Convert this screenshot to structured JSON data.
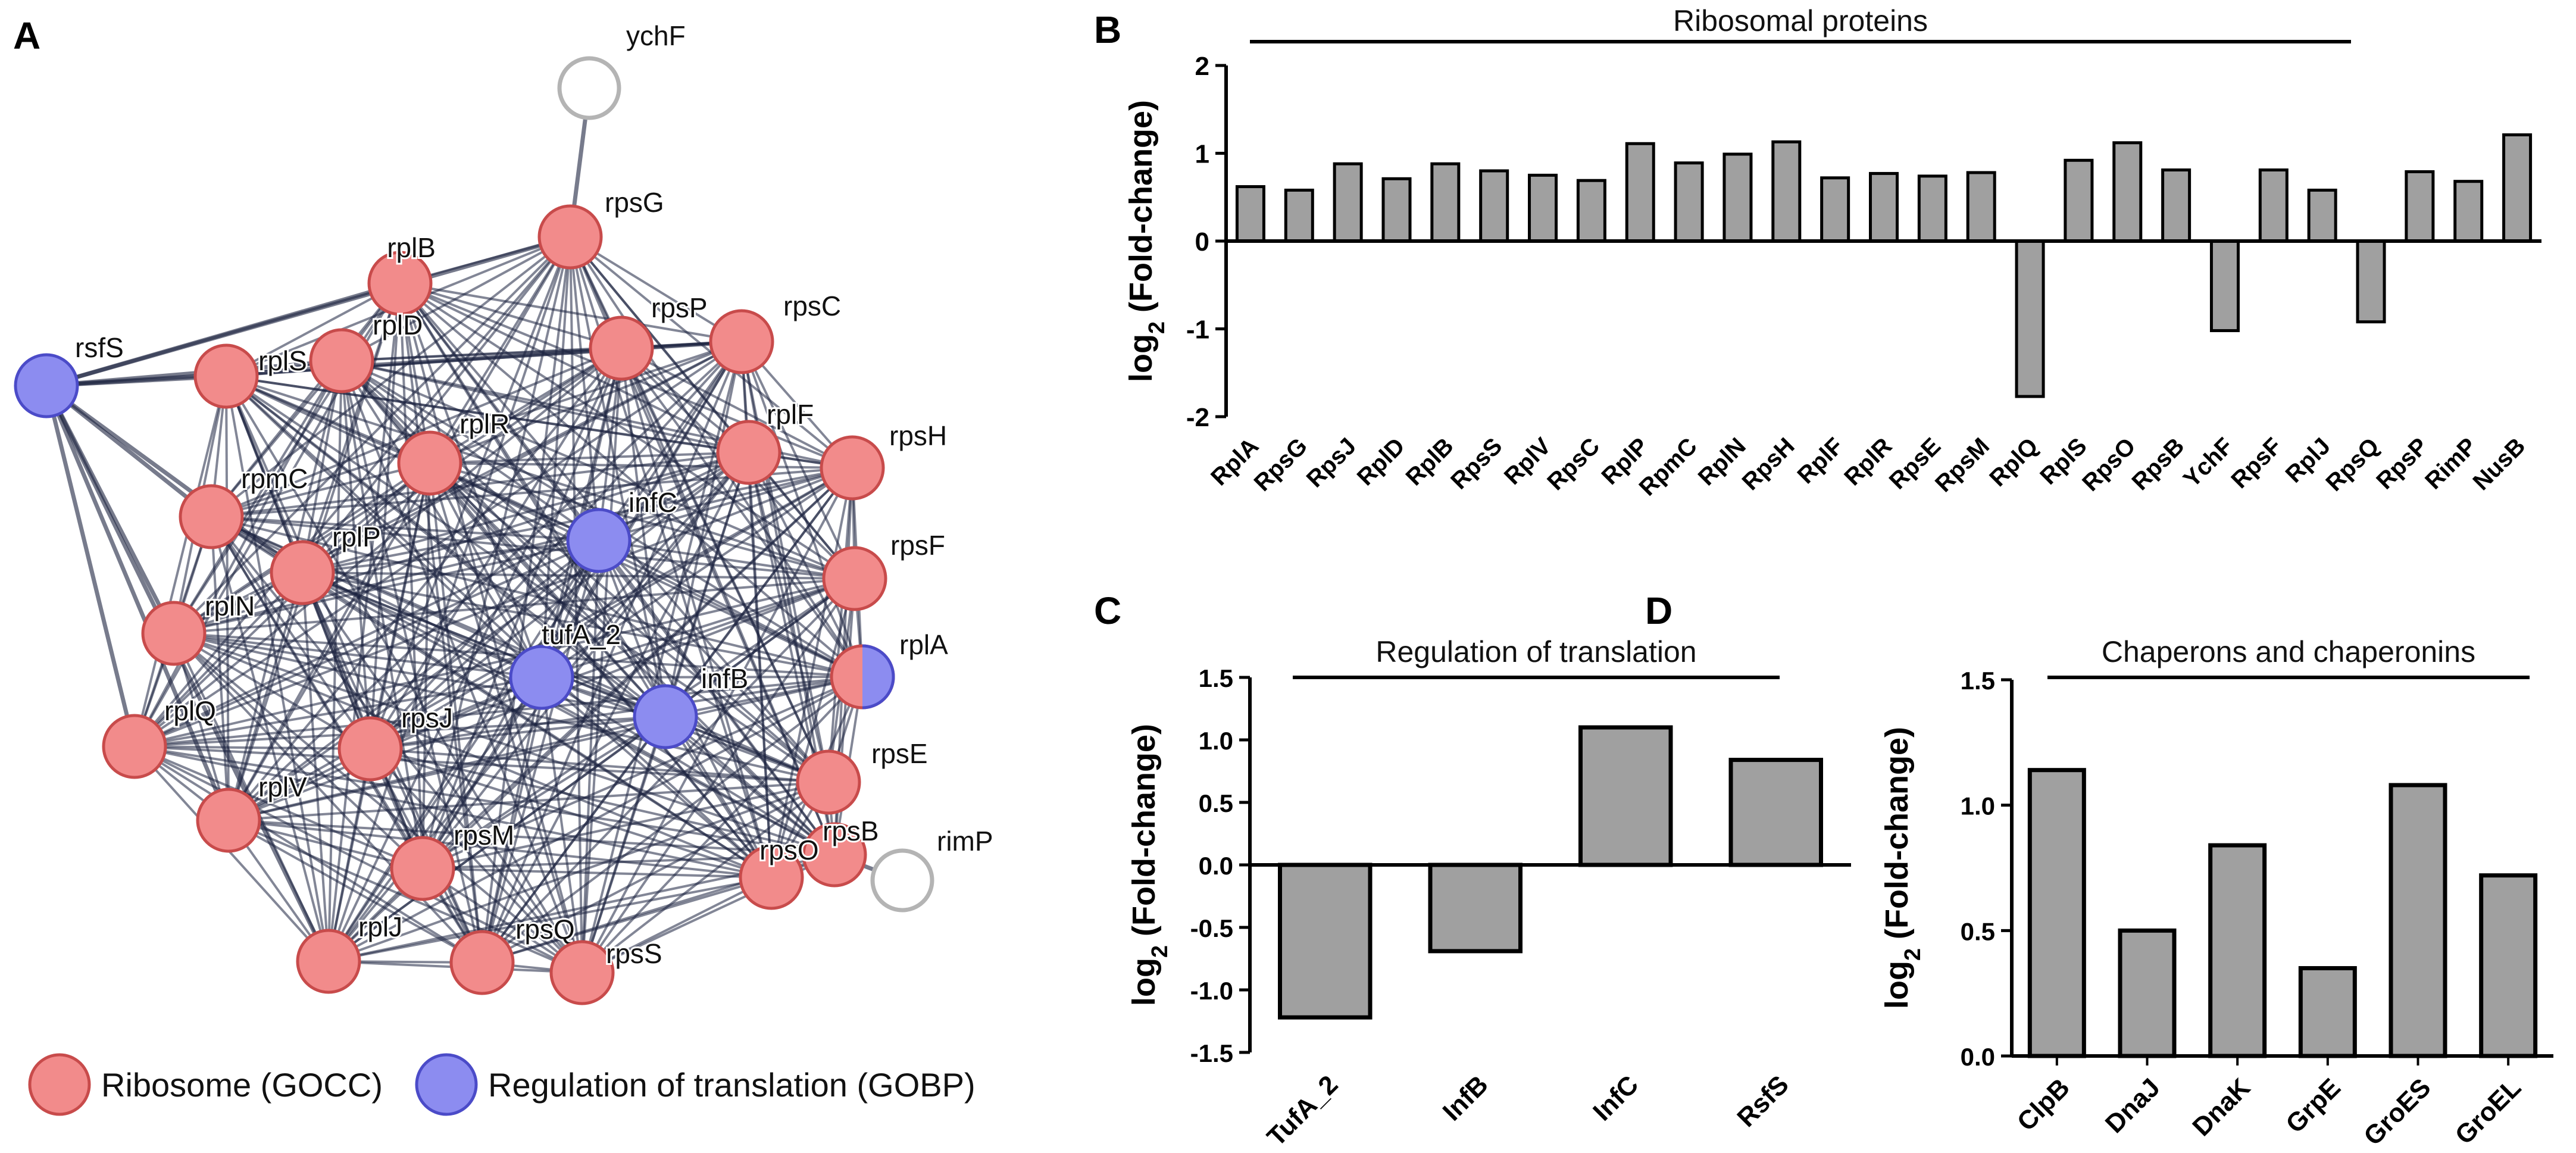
{
  "panels": {
    "A": {
      "label": "A",
      "legend": [
        {
          "name": "Ribosome (GOCC)",
          "color": "#f28b8b"
        },
        {
          "name": "Regulation of translation (GOBP)",
          "color": "#8c8cf0"
        }
      ]
    },
    "B": {
      "label": "B"
    },
    "C": {
      "label": "C"
    },
    "D": {
      "label": "D"
    }
  },
  "network": {
    "colors": {
      "ribosome": "#f28b8b",
      "ribosome_stroke": "#c84b4b",
      "regulation": "#8c8cf0",
      "regulation_stroke": "#4b4bc8",
      "other_stroke": "#b4b4b4",
      "edge": "#1c2340"
    },
    "nodes": [
      {
        "id": "ychF",
        "group": "other"
      },
      {
        "id": "rpsG",
        "group": "ribosome"
      },
      {
        "id": "rplB",
        "group": "ribosome"
      },
      {
        "id": "rsfS",
        "group": "regulation"
      },
      {
        "id": "rplS",
        "group": "ribosome"
      },
      {
        "id": "rplD",
        "group": "ribosome"
      },
      {
        "id": "rpsP",
        "group": "ribosome"
      },
      {
        "id": "rpsC",
        "group": "ribosome"
      },
      {
        "id": "rplR",
        "group": "ribosome"
      },
      {
        "id": "rplF",
        "group": "ribosome"
      },
      {
        "id": "rpsH",
        "group": "ribosome"
      },
      {
        "id": "rpmC",
        "group": "ribosome"
      },
      {
        "id": "infC",
        "group": "regulation"
      },
      {
        "id": "rpsF",
        "group": "ribosome"
      },
      {
        "id": "rplP",
        "group": "ribosome"
      },
      {
        "id": "rplN",
        "group": "ribosome"
      },
      {
        "id": "tufA_2",
        "group": "regulation"
      },
      {
        "id": "infB",
        "group": "regulation"
      },
      {
        "id": "rplA",
        "group": "both"
      },
      {
        "id": "rplQ",
        "group": "ribosome"
      },
      {
        "id": "rpsJ",
        "group": "ribosome"
      },
      {
        "id": "rpsE",
        "group": "ribosome"
      },
      {
        "id": "rplV",
        "group": "ribosome"
      },
      {
        "id": "rpsM",
        "group": "ribosome"
      },
      {
        "id": "rpsB",
        "group": "ribosome"
      },
      {
        "id": "rimP",
        "group": "other"
      },
      {
        "id": "rpsO",
        "group": "ribosome"
      },
      {
        "id": "rplJ",
        "group": "ribosome"
      },
      {
        "id": "rpsQ",
        "group": "ribosome"
      },
      {
        "id": "rpsS",
        "group": "ribosome"
      }
    ]
  },
  "chart_data": [
    {
      "panel": "B",
      "type": "bar",
      "title": "Ribosomal proteins",
      "ylabel_main": "log",
      "ylabel_sub": "2",
      "ylabel_rest": " (Fold-change)",
      "ylim": [
        -2,
        2
      ],
      "yticks": [
        -2,
        -1,
        0,
        1,
        2
      ],
      "ytick_labels": [
        "-2",
        "-1",
        "0",
        "1",
        "2"
      ],
      "categories": [
        "RplA",
        "RpsG",
        "RpsJ",
        "RplD",
        "RplB",
        "RpsS",
        "RplV",
        "RpsC",
        "RplP",
        "RpmC",
        "RplN",
        "RpsH",
        "RplF",
        "RplR",
        "RpsE",
        "RpsM",
        "RplQ",
        "RplS",
        "RpsO",
        "RpsB",
        "YchF",
        "RpsF",
        "RplJ",
        "RpsQ",
        "RpsP",
        "RimP",
        "NusB"
      ],
      "values": [
        0.62,
        0.58,
        0.88,
        0.71,
        0.88,
        0.8,
        0.75,
        0.69,
        1.11,
        0.89,
        0.99,
        1.13,
        0.72,
        0.77,
        0.74,
        0.78,
        -1.77,
        0.92,
        1.12,
        0.81,
        -1.02,
        0.81,
        0.58,
        -0.92,
        0.79,
        0.68,
        1.21
      ],
      "bar_color": "#a0a0a0"
    },
    {
      "panel": "C",
      "type": "bar",
      "title": "Regulation of translation",
      "ylabel_main": "log",
      "ylabel_sub": "2",
      "ylabel_rest": " (Fold-change)",
      "ylim": [
        -1.5,
        1.5
      ],
      "yticks": [
        -1.5,
        -1.0,
        -0.5,
        0.0,
        0.5,
        1.0,
        1.5
      ],
      "ytick_labels": [
        "-1.5",
        "-1.0",
        "-0.5",
        "0.0",
        "0.5",
        "1.0",
        "1.5"
      ],
      "categories": [
        "TufA_2",
        "InfB",
        "InfC",
        "RsfS"
      ],
      "values": [
        -1.22,
        -0.69,
        1.1,
        0.84
      ],
      "bar_color": "#a0a0a0"
    },
    {
      "panel": "D",
      "type": "bar",
      "title": "Chaperons and chaperonins",
      "ylabel_main": "log",
      "ylabel_sub": "2",
      "ylabel_rest": " (Fold-change)",
      "ylim": [
        0,
        1.5
      ],
      "yticks": [
        0,
        0.5,
        1.0,
        1.5
      ],
      "ytick_labels": [
        "0.0",
        "0.5",
        "1.0",
        "1.5"
      ],
      "categories": [
        "ClpB",
        "DnaJ",
        "DnaK",
        "GrpE",
        "GroES",
        "GroEL"
      ],
      "values": [
        1.14,
        0.5,
        0.84,
        0.35,
        1.08,
        0.72
      ],
      "bar_color": "#a0a0a0"
    }
  ]
}
